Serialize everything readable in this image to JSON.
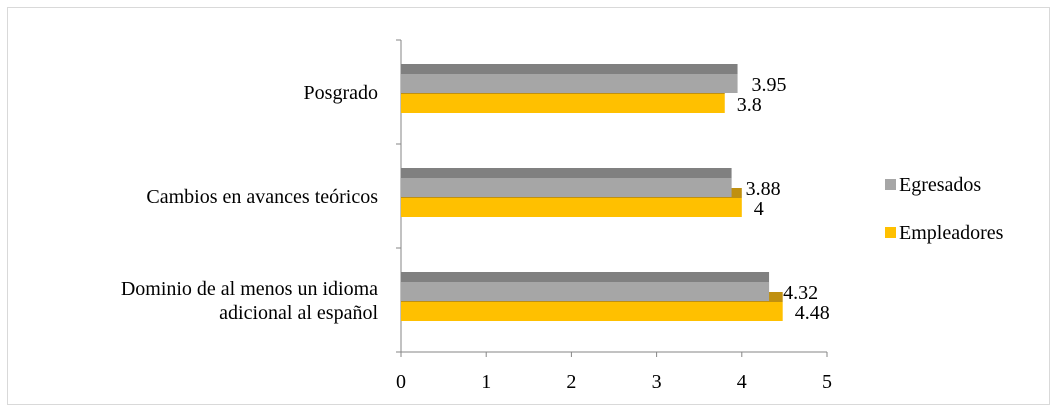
{
  "colors": {
    "egresados": "#a6a6a6",
    "egresados_top": "#808080",
    "empleadores": "#ffc000",
    "empleadores_edge": "#c09010",
    "axis": "#868686"
  },
  "chart_data": {
    "type": "bar",
    "orientation": "horizontal",
    "categories": [
      [
        "Posgrado"
      ],
      [
        "Cambios en avances teóricos"
      ],
      [
        "Dominio de al menos un idioma",
        "adicional al español"
      ]
    ],
    "series": [
      {
        "name": "Egresados",
        "values": [
          3.95,
          3.88,
          4.32
        ],
        "labels": [
          "3.95",
          "3.88",
          "4.32"
        ]
      },
      {
        "name": "Empleadores",
        "values": [
          3.8,
          4,
          4.48
        ],
        "labels": [
          "3.8",
          "4",
          "4.48"
        ]
      }
    ],
    "xlim": [
      0,
      5
    ],
    "ticks": [
      "0",
      "1",
      "2",
      "3",
      "4",
      "5"
    ],
    "legend": "right",
    "grid": false
  }
}
